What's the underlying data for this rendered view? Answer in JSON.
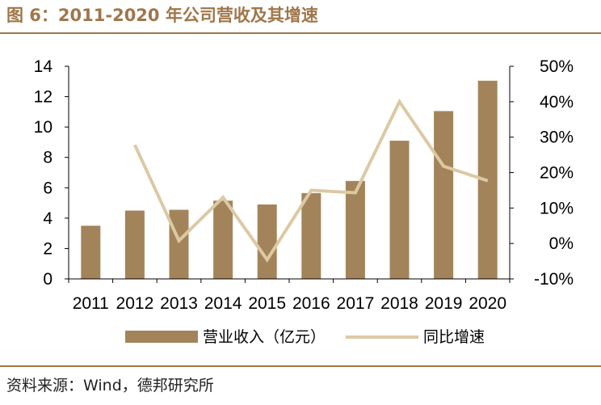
{
  "header": {
    "title": "图 6：2011-2020 年公司营收及其增速"
  },
  "footer": {
    "source": "资料来源：Wind，德邦研究所"
  },
  "colors": {
    "bar": "#a3845a",
    "line": "#dcc9a4",
    "accent": "#a0764a"
  },
  "chart_data": {
    "type": "bar",
    "categories": [
      "2011",
      "2012",
      "2013",
      "2014",
      "2015",
      "2016",
      "2017",
      "2018",
      "2019",
      "2020"
    ],
    "series": [
      {
        "name": "营业收入（亿元）",
        "type": "bar",
        "axis": "left",
        "values": [
          3.5,
          4.5,
          4.55,
          5.15,
          4.9,
          5.65,
          6.45,
          9.1,
          11.05,
          13.05
        ]
      },
      {
        "name": "同比增速",
        "type": "line",
        "axis": "right",
        "values": [
          null,
          27.8,
          0.8,
          13.0,
          -4.6,
          15.0,
          14.3,
          40.0,
          21.8,
          17.7
        ]
      }
    ],
    "y_left": {
      "min": 0,
      "max": 14,
      "ticks": [
        "0",
        "2",
        "4",
        "6",
        "8",
        "10",
        "12",
        "14"
      ]
    },
    "y_right": {
      "min": -10,
      "max": 50,
      "ticks": [
        "-10%",
        "0%",
        "10%",
        "20%",
        "30%",
        "40%",
        "50%"
      ]
    },
    "grid": false,
    "legend_position": "bottom"
  }
}
